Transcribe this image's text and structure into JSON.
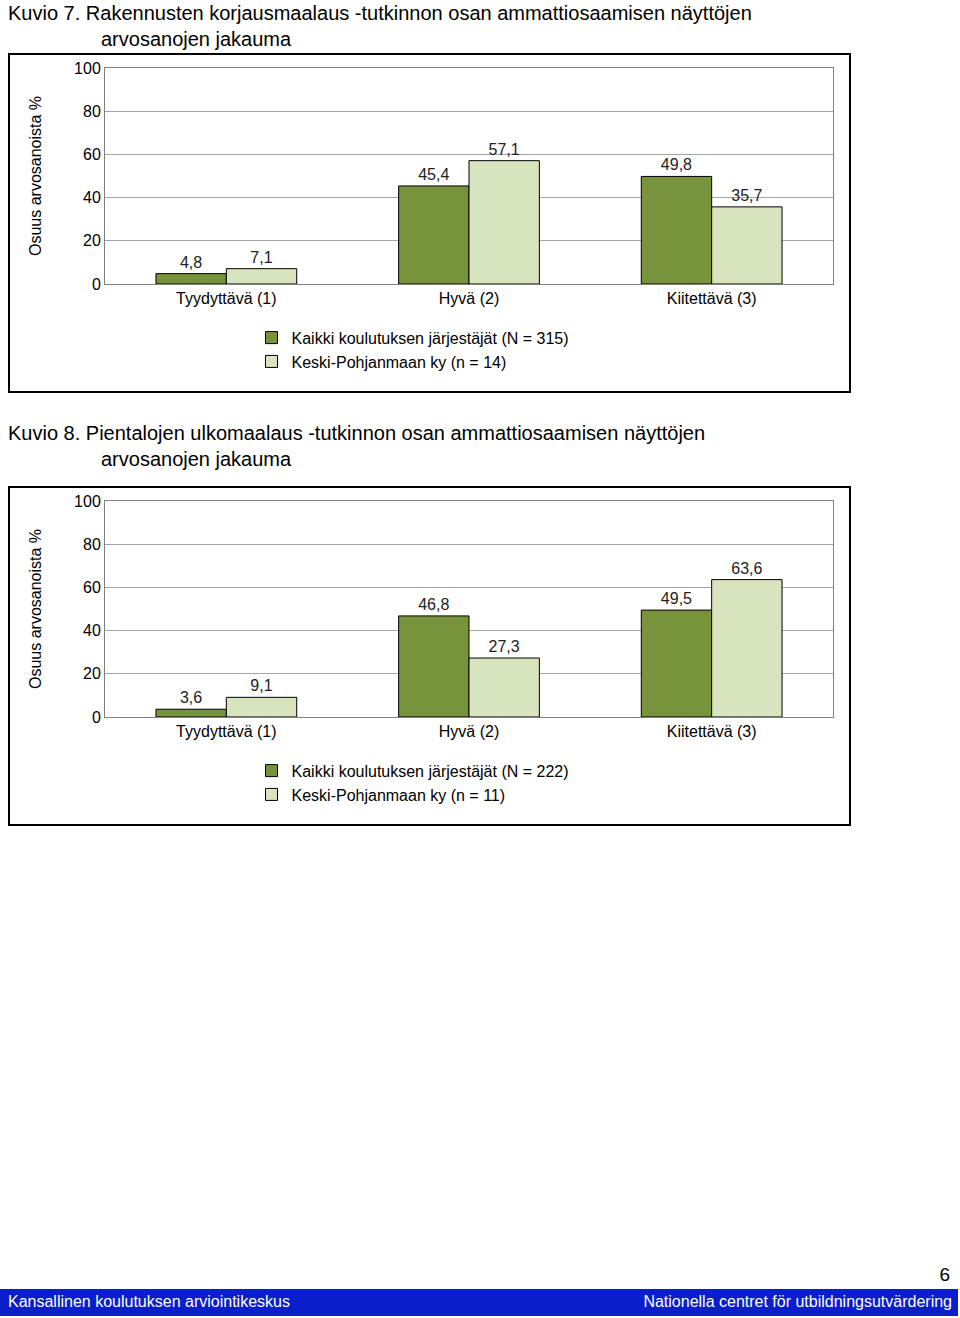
{
  "chart_data": [
    {
      "type": "bar",
      "title": "Kuvio 7. Rakennusten korjausmaalaus -tutkinnon osan ammattiosaamisen näyttöjen\narvosanojen jakauma",
      "ylabel": "Osuus arvosanoista %",
      "categories": [
        "Tyydyttävä (1)",
        "Hyvä (2)",
        "Kiitettävä (3)"
      ],
      "series": [
        {
          "name": "Kaikki koulutuksen järjestäjät (N = 315)",
          "color": "#77933c",
          "values": [
            4.8,
            45.4,
            49.8
          ],
          "value_labels": [
            "4,8",
            "45,4",
            "49,8"
          ]
        },
        {
          "name": "Keski-Pohjanmaan ky (n = 14)",
          "color": "#d7e4bd",
          "values": [
            7.1,
            57.1,
            35.7
          ],
          "value_labels": [
            "7,1",
            "57,1",
            "35,7"
          ]
        }
      ],
      "ylim": [
        0,
        100
      ],
      "yticks": [
        0,
        20,
        40,
        60,
        80,
        100
      ],
      "grid": true,
      "legend": "bottom",
      "data_labels": true
    },
    {
      "type": "bar",
      "title": "Kuvio 8. Pientalojen ulkomaalaus -tutkinnon osan ammattiosaamisen näyttöjen\narvosanojen jakauma",
      "ylabel": "Osuus arvosanoista %",
      "categories": [
        "Tyydyttävä (1)",
        "Hyvä (2)",
        "Kiitettävä (3)"
      ],
      "series": [
        {
          "name": "Kaikki koulutuksen järjestäjät (N = 222)",
          "color": "#77933c",
          "values": [
            3.6,
            46.8,
            49.5
          ],
          "value_labels": [
            "3,6",
            "46,8",
            "49,5"
          ]
        },
        {
          "name": "Keski-Pohjanmaan ky (n = 11)",
          "color": "#d7e4bd",
          "values": [
            9.1,
            27.3,
            63.6
          ],
          "value_labels": [
            "9,1",
            "27,3",
            "63,6"
          ]
        }
      ],
      "ylim": [
        0,
        100
      ],
      "yticks": [
        0,
        20,
        40,
        60,
        80,
        100
      ],
      "grid": true,
      "legend": "bottom",
      "data_labels": true
    }
  ],
  "footer": {
    "left": "Kansallinen koulutuksen arviointikeskus",
    "right": "Nationella centret för utbildningsutvärdering",
    "page": "6"
  }
}
